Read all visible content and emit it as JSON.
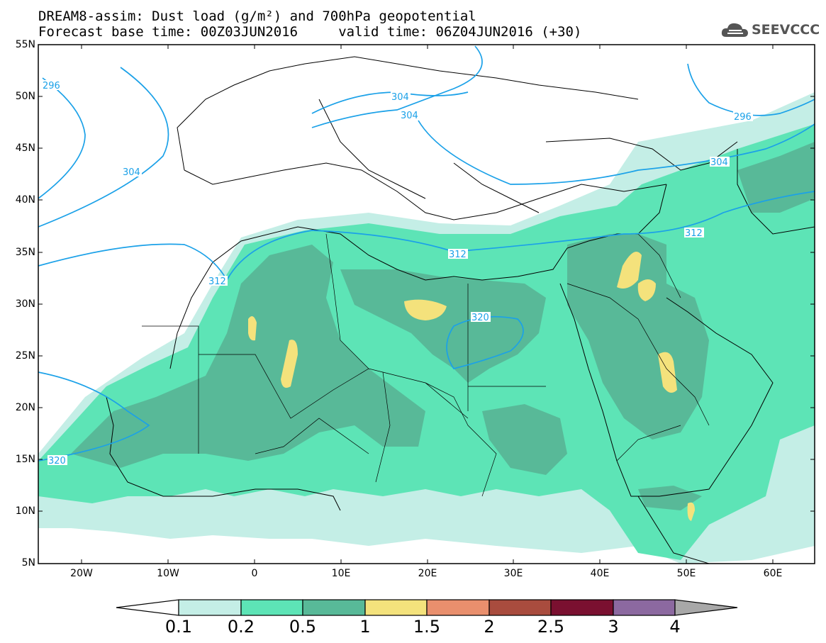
{
  "header": {
    "title_line1": "DREAM8-assim: Dust load (g/m²) and 700hPa geopotential",
    "title_line2": "Forecast base time: 00Z03JUN2016     valid time: 06Z04JUN2016 (+30)",
    "logo_text": "SEEVCCC"
  },
  "axes": {
    "lat_labels": [
      "55N",
      "50N",
      "45N",
      "40N",
      "35N",
      "30N",
      "25N",
      "20N",
      "15N",
      "10N",
      "5N"
    ],
    "lon_labels": [
      "20W",
      "10W",
      "0",
      "10E",
      "20E",
      "30E",
      "40E",
      "50E",
      "60E"
    ]
  },
  "contours": {
    "labels": [
      "296",
      "304",
      "312",
      "304",
      "304",
      "320",
      "320",
      "312",
      "304",
      "296",
      "312"
    ]
  },
  "colorbar": {
    "ticks": [
      "0.1",
      "0.2",
      "0.5",
      "1",
      "1.5",
      "2",
      "2.5",
      "3",
      "4"
    ],
    "colors": [
      "#c4eee6",
      "#5de4b6",
      "#58b998",
      "#f4e27c",
      "#e98f6d",
      "#a94c3e",
      "#7a1030",
      "#8c69a0"
    ]
  },
  "colors": {
    "contour_line": "#1ba1e8",
    "border_line": "#000000"
  }
}
